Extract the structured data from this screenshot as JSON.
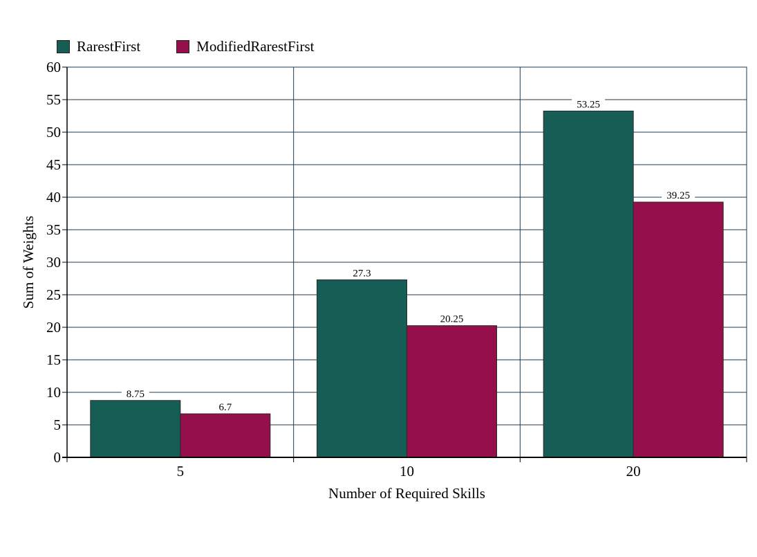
{
  "chart_data": {
    "type": "bar",
    "categories": [
      "5",
      "10",
      "20"
    ],
    "series": [
      {
        "name": "RarestFirst",
        "values": [
          8.75,
          27.3,
          53.25
        ],
        "labels": [
          "8.75",
          "27.3",
          "53.25"
        ],
        "color": "#165e55"
      },
      {
        "name": "ModifiedRarestFirst",
        "values": [
          6.7,
          20.25,
          39.25
        ],
        "labels": [
          "6.7",
          "20.25",
          "39.25"
        ],
        "color": "#95104b"
      }
    ],
    "xlabel": "Number of Required Skills",
    "ylabel": "Sum of Weights",
    "ylim": [
      0,
      60
    ],
    "yticks": [
      "0",
      "5",
      "10",
      "15",
      "20",
      "25",
      "30",
      "35",
      "40",
      "45",
      "50",
      "55",
      "60"
    ],
    "grid": true,
    "legend_position": "top-left"
  }
}
